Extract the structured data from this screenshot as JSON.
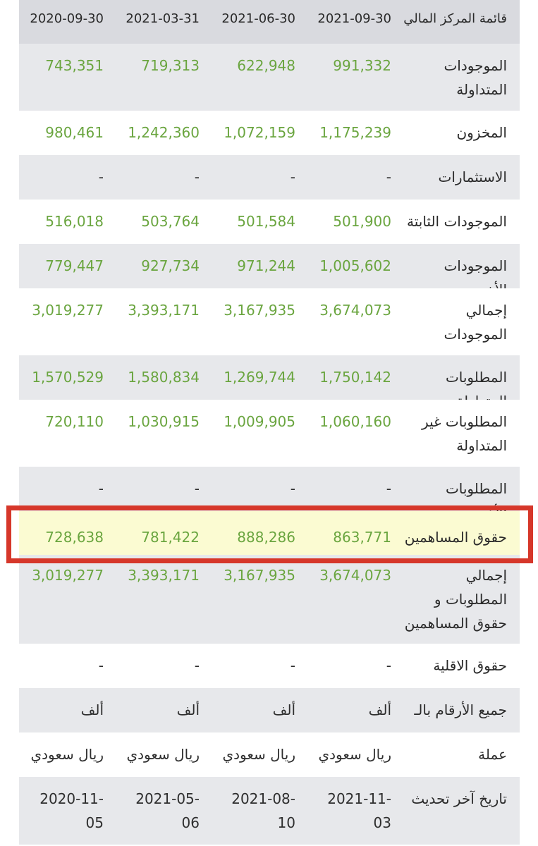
{
  "header": {
    "title": "قائمة المركز المالي",
    "dates": [
      "2021-09-30",
      "2021-06-30",
      "2021-03-31",
      "2020-09-30"
    ]
  },
  "rows": [
    {
      "label": "الموجودات المتداولة",
      "values": [
        "991,332",
        "622,948",
        "719,313",
        "743,351"
      ]
    },
    {
      "label": "المخزون",
      "values": [
        "1,175,239",
        "1,072,159",
        "1,242,360",
        "980,461"
      ]
    },
    {
      "label": "الاستثمارات",
      "values": [
        "-",
        "-",
        "-",
        "-"
      ]
    },
    {
      "label": "الموجودات الثابتة",
      "values": [
        "501,900",
        "501,584",
        "503,764",
        "516,018"
      ]
    },
    {
      "label": "الموجودات الأخرى",
      "values": [
        "1,005,602",
        "971,244",
        "927,734",
        "779,447"
      ]
    },
    {
      "label": "إجمالي الموجودات",
      "values": [
        "3,674,073",
        "3,167,935",
        "3,393,171",
        "3,019,277"
      ]
    },
    {
      "label": "المطلوبات المتداولة",
      "values": [
        "1,750,142",
        "1,269,744",
        "1,580,834",
        "1,570,529"
      ]
    },
    {
      "label": "المطلوبات غير المتداولة",
      "values": [
        "1,060,160",
        "1,009,905",
        "1,030,915",
        "720,110"
      ]
    },
    {
      "label": "المطلوبات الأخرى",
      "values": [
        "-",
        "-",
        "-",
        "-"
      ]
    },
    {
      "label": "حقوق المساهمين",
      "values": [
        "863,771",
        "888,286",
        "781,422",
        "728,638"
      ]
    },
    {
      "label": "إجمالي المطلوبات و حقوق المساهمين",
      "values": [
        "3,674,073",
        "3,167,935",
        "3,393,171",
        "3,019,277"
      ]
    },
    {
      "label": "حقوق الاقلية",
      "values": [
        "-",
        "-",
        "-",
        "-"
      ]
    },
    {
      "label": "جميع الأرقام بالـ",
      "values": [
        "ألف",
        "ألف",
        "ألف",
        "ألف"
      ]
    },
    {
      "label": "عملة",
      "values": [
        "ريال سعودي",
        "ريال سعودي",
        "ريال سعودي",
        "ريال سعودي"
      ]
    },
    {
      "label": "تاريخ آخر تحديث",
      "values": [
        "2021-11-03",
        "2021-08-10",
        "2021-05-06",
        "2020-11-05"
      ]
    }
  ],
  "colors": {
    "value_green": "#6aa53f",
    "highlight_fill": "#fbfbd2",
    "highlight_border": "#d6372a",
    "shade_row": "#e7e8eb",
    "header_row": "#d9dadf"
  }
}
